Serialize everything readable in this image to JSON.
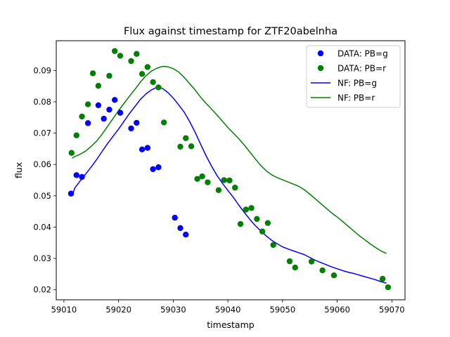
{
  "chart_data": {
    "type": "scatter",
    "title": "Flux against timestamp for ZTF20abelnha",
    "xlabel": "timestamp",
    "ylabel": "flux",
    "xlim": [
      59008.6,
      59072.4
    ],
    "ylim": [
      0.0168,
      0.0995
    ],
    "xticks": [
      59010,
      59020,
      59030,
      59040,
      59050,
      59060,
      59070
    ],
    "yticks": [
      0.02,
      0.03,
      0.04,
      0.05,
      0.06,
      0.07,
      0.08,
      0.09
    ],
    "xtick_labels": [
      "59010",
      "59020",
      "59030",
      "59040",
      "59050",
      "59060",
      "59070"
    ],
    "ytick_labels": [
      "0.02",
      "0.03",
      "0.04",
      "0.05",
      "0.06",
      "0.07",
      "0.08",
      "0.09"
    ],
    "grid": false,
    "legend_position": "top-right",
    "series": [
      {
        "name": "DATA: PB=g",
        "kind": "scatter",
        "color": "#0000ff",
        "points": [
          [
            59011.3,
            0.0507
          ],
          [
            59012.3,
            0.0566
          ],
          [
            59013.3,
            0.056
          ],
          [
            59014.4,
            0.0732
          ],
          [
            59016.3,
            0.0789
          ],
          [
            59017.3,
            0.0746
          ],
          [
            59018.3,
            0.0775
          ],
          [
            59019.3,
            0.0806
          ],
          [
            59020.3,
            0.0765
          ],
          [
            59022.3,
            0.0715
          ],
          [
            59023.3,
            0.0733
          ],
          [
            59024.3,
            0.0648
          ],
          [
            59025.3,
            0.0653
          ],
          [
            59026.3,
            0.0585
          ],
          [
            59027.3,
            0.0591
          ],
          [
            59030.3,
            0.043
          ],
          [
            59031.3,
            0.0397
          ],
          [
            59032.3,
            0.0376
          ]
        ]
      },
      {
        "name": "DATA: PB=r",
        "kind": "scatter",
        "color": "#008000",
        "points": [
          [
            59011.4,
            0.0637
          ],
          [
            59012.3,
            0.0693
          ],
          [
            59013.3,
            0.0753
          ],
          [
            59014.4,
            0.0792
          ],
          [
            59015.3,
            0.0891
          ],
          [
            59016.3,
            0.0851
          ],
          [
            59018.3,
            0.0883
          ],
          [
            59019.3,
            0.0962
          ],
          [
            59020.3,
            0.0947
          ],
          [
            59022.3,
            0.093
          ],
          [
            59023.3,
            0.0953
          ],
          [
            59024.3,
            0.0889
          ],
          [
            59025.3,
            0.0911
          ],
          [
            59026.3,
            0.0863
          ],
          [
            59027.3,
            0.0846
          ],
          [
            59028.3,
            0.0734
          ],
          [
            59031.3,
            0.0657
          ],
          [
            59032.3,
            0.0684
          ],
          [
            59033.3,
            0.0658
          ],
          [
            59034.4,
            0.0554
          ],
          [
            59035.3,
            0.0562
          ],
          [
            59036.3,
            0.0543
          ],
          [
            59038.3,
            0.0518
          ],
          [
            59039.3,
            0.055
          ],
          [
            59040.3,
            0.0549
          ],
          [
            59041.3,
            0.0526
          ],
          [
            59042.3,
            0.041
          ],
          [
            59043.3,
            0.0456
          ],
          [
            59044.3,
            0.0461
          ],
          [
            59045.3,
            0.0426
          ],
          [
            59046.3,
            0.0386
          ],
          [
            59047.3,
            0.0413
          ],
          [
            59048.3,
            0.0343
          ],
          [
            59051.3,
            0.0291
          ],
          [
            59052.3,
            0.0271
          ],
          [
            59055.3,
            0.029
          ],
          [
            59057.3,
            0.0262
          ],
          [
            59059.4,
            0.0246
          ],
          [
            59068.3,
            0.0235
          ],
          [
            59069.3,
            0.0208
          ]
        ]
      },
      {
        "name": "NF: PB=g",
        "kind": "line",
        "color": "#0000ff",
        "points": [
          [
            59011.5,
            0.05
          ],
          [
            59012.0,
            0.0525
          ],
          [
            59013.0,
            0.0548
          ],
          [
            59014.0,
            0.057
          ],
          [
            59015.0,
            0.0592
          ],
          [
            59016.0,
            0.0616
          ],
          [
            59017.0,
            0.0642
          ],
          [
            59018.0,
            0.0667
          ],
          [
            59019.0,
            0.069
          ],
          [
            59020.0,
            0.0713
          ],
          [
            59021.0,
            0.0738
          ],
          [
            59022.0,
            0.0763
          ],
          [
            59023.0,
            0.0785
          ],
          [
            59024.0,
            0.0808
          ],
          [
            59025.0,
            0.0825
          ],
          [
            59026.0,
            0.0838
          ],
          [
            59027.0,
            0.0846
          ],
          [
            59028.0,
            0.0843
          ],
          [
            59029.0,
            0.083
          ],
          [
            59030.0,
            0.0812
          ],
          [
            59031.0,
            0.079
          ],
          [
            59032.0,
            0.0767
          ],
          [
            59033.0,
            0.0737
          ],
          [
            59034.0,
            0.0703
          ],
          [
            59035.0,
            0.0665
          ],
          [
            59036.0,
            0.0628
          ],
          [
            59037.0,
            0.0595
          ],
          [
            59038.0,
            0.0565
          ],
          [
            59039.0,
            0.054
          ],
          [
            59040.0,
            0.0517
          ],
          [
            59041.0,
            0.0495
          ],
          [
            59042.0,
            0.047
          ],
          [
            59043.0,
            0.0447
          ],
          [
            59044.0,
            0.0425
          ],
          [
            59045.0,
            0.0405
          ],
          [
            59046.0,
            0.0388
          ],
          [
            59047.0,
            0.0372
          ],
          [
            59048.0,
            0.0358
          ],
          [
            59049.0,
            0.0347
          ],
          [
            59050.0,
            0.0337
          ],
          [
            59051.0,
            0.033
          ],
          [
            59052.0,
            0.0324
          ],
          [
            59053.0,
            0.0318
          ],
          [
            59054.0,
            0.0312
          ],
          [
            59055.0,
            0.0303
          ],
          [
            59056.0,
            0.0294
          ],
          [
            59057.0,
            0.0287
          ],
          [
            59058.0,
            0.028
          ],
          [
            59059.0,
            0.0273
          ],
          [
            59060.0,
            0.0267
          ],
          [
            59061.0,
            0.0261
          ],
          [
            59062.0,
            0.0256
          ],
          [
            59063.0,
            0.0252
          ],
          [
            59064.0,
            0.0247
          ],
          [
            59065.0,
            0.0242
          ],
          [
            59066.0,
            0.0237
          ],
          [
            59067.0,
            0.0232
          ],
          [
            59068.0,
            0.0226
          ],
          [
            59069.0,
            0.0221
          ]
        ]
      },
      {
        "name": "NF: PB=r",
        "kind": "line",
        "color": "#008000",
        "points": [
          [
            59011.5,
            0.062
          ],
          [
            59012.0,
            0.0625
          ],
          [
            59013.0,
            0.0633
          ],
          [
            59014.0,
            0.0643
          ],
          [
            59015.0,
            0.0658
          ],
          [
            59016.0,
            0.0675
          ],
          [
            59017.0,
            0.0697
          ],
          [
            59018.0,
            0.0722
          ],
          [
            59019.0,
            0.0747
          ],
          [
            59020.0,
            0.0772
          ],
          [
            59021.0,
            0.0795
          ],
          [
            59022.0,
            0.0818
          ],
          [
            59023.0,
            0.084
          ],
          [
            59024.0,
            0.0863
          ],
          [
            59025.0,
            0.0883
          ],
          [
            59026.0,
            0.0898
          ],
          [
            59027.0,
            0.0907
          ],
          [
            59028.0,
            0.0913
          ],
          [
            59029.0,
            0.0912
          ],
          [
            59030.0,
            0.0906
          ],
          [
            59031.0,
            0.0895
          ],
          [
            59032.0,
            0.0878
          ],
          [
            59033.0,
            0.0858
          ],
          [
            59034.0,
            0.0838
          ],
          [
            59035.0,
            0.0815
          ],
          [
            59036.0,
            0.0795
          ],
          [
            59037.0,
            0.0777
          ],
          [
            59038.0,
            0.0758
          ],
          [
            59039.0,
            0.0738
          ],
          [
            59040.0,
            0.0718
          ],
          [
            59041.0,
            0.07
          ],
          [
            59042.0,
            0.0682
          ],
          [
            59043.0,
            0.0662
          ],
          [
            59044.0,
            0.064
          ],
          [
            59045.0,
            0.0618
          ],
          [
            59046.0,
            0.0597
          ],
          [
            59047.0,
            0.058
          ],
          [
            59048.0,
            0.0567
          ],
          [
            59049.0,
            0.0558
          ],
          [
            59050.0,
            0.0551
          ],
          [
            59051.0,
            0.0544
          ],
          [
            59052.0,
            0.0537
          ],
          [
            59053.0,
            0.053
          ],
          [
            59054.0,
            0.0519
          ],
          [
            59055.0,
            0.0505
          ],
          [
            59056.0,
            0.049
          ],
          [
            59057.0,
            0.0475
          ],
          [
            59058.0,
            0.046
          ],
          [
            59059.0,
            0.0445
          ],
          [
            59060.0,
            0.0432
          ],
          [
            59061.0,
            0.0418
          ],
          [
            59062.0,
            0.0403
          ],
          [
            59063.0,
            0.0388
          ],
          [
            59064.0,
            0.0373
          ],
          [
            59065.0,
            0.036
          ],
          [
            59066.0,
            0.0347
          ],
          [
            59067.0,
            0.0335
          ],
          [
            59068.0,
            0.0324
          ],
          [
            59069.0,
            0.0316
          ]
        ]
      }
    ]
  }
}
